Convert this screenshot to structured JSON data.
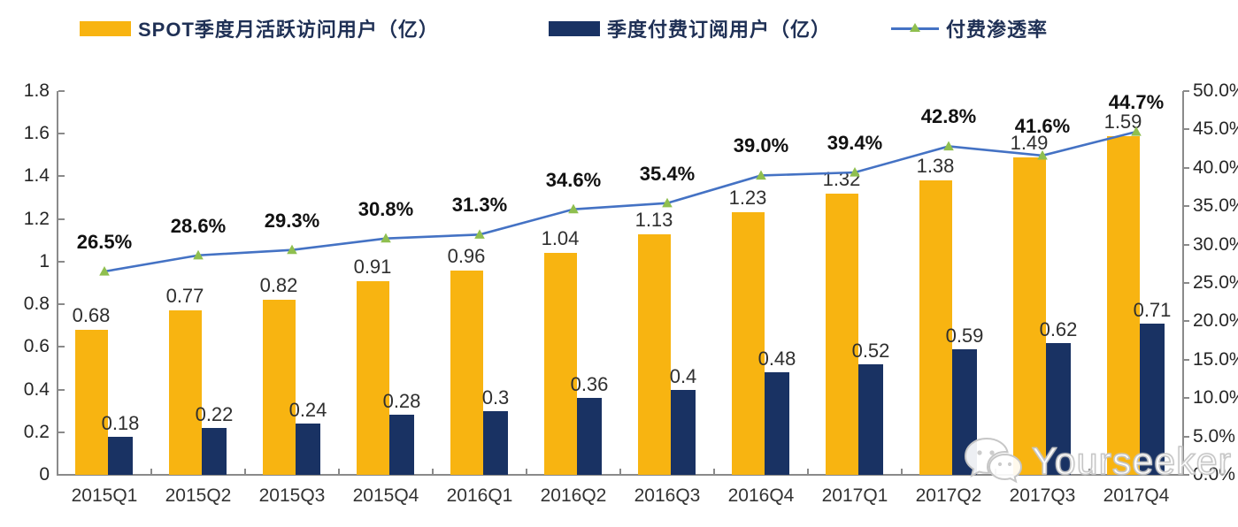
{
  "legend": [
    {
      "label": "SPOT季度月活跃访问用户（亿）",
      "type": "bar",
      "color": "#F8B411"
    },
    {
      "label": "季度付费订阅用户（亿）",
      "type": "bar",
      "color": "#193263"
    },
    {
      "label": "付费渗透率",
      "type": "line",
      "color": "#4472C4",
      "marker_color": "#8FBF4F"
    }
  ],
  "watermark": {
    "text": "Yourseeker",
    "icon": "wechat-icon"
  },
  "chart_data": {
    "type": "bar",
    "subtype": "grouped bars + line (dual axis)",
    "categories": [
      "2015Q1",
      "2015Q2",
      "2015Q3",
      "2015Q4",
      "2016Q1",
      "2016Q2",
      "2016Q3",
      "2016Q4",
      "2017Q1",
      "2017Q2",
      "2017Q3",
      "2017Q4"
    ],
    "series": [
      {
        "name": "SPOT季度月活跃访问用户（亿）",
        "type": "bar",
        "axis": "left",
        "color": "#F8B411",
        "values": [
          0.68,
          0.77,
          0.82,
          0.91,
          0.96,
          1.04,
          1.13,
          1.23,
          1.32,
          1.38,
          1.49,
          1.59
        ],
        "labels": [
          "0.68",
          "0.77",
          "0.82",
          "0.91",
          "0.96",
          "1.04",
          "1.13",
          "1.23",
          "1.32",
          "1.38",
          "1.49",
          "1.59"
        ]
      },
      {
        "name": "季度付费订阅用户（亿）",
        "type": "bar",
        "axis": "left",
        "color": "#193263",
        "values": [
          0.18,
          0.22,
          0.24,
          0.28,
          0.3,
          0.36,
          0.4,
          0.48,
          0.52,
          0.59,
          0.62,
          0.71
        ],
        "labels": [
          "0.18",
          "0.22",
          "0.24",
          "0.28",
          "0.3",
          "0.36",
          "0.4",
          "0.48",
          "0.52",
          "0.59",
          "0.62",
          "0.71"
        ]
      },
      {
        "name": "付费渗透率",
        "type": "line",
        "axis": "right",
        "color": "#4472C4",
        "marker": "triangle",
        "marker_color": "#8FBF4F",
        "values": [
          26.5,
          28.6,
          29.3,
          30.8,
          31.3,
          34.6,
          35.4,
          39.0,
          39.4,
          42.8,
          41.6,
          44.7
        ],
        "labels": [
          "26.5%",
          "28.6%",
          "29.3%",
          "30.8%",
          "31.3%",
          "34.6%",
          "35.4%",
          "39.0%",
          "39.4%",
          "42.8%",
          "41.6%",
          "44.7%"
        ]
      }
    ],
    "left_axis": {
      "min": 0,
      "max": 1.8,
      "step": 0.2,
      "tick_labels": [
        "0",
        "0.2",
        "0.4",
        "0.6",
        "0.8",
        "1",
        "1.2",
        "1.4",
        "1.6",
        "1.8"
      ]
    },
    "right_axis": {
      "min": 0,
      "max": 50,
      "step": 5,
      "tick_labels": [
        "0.0%",
        "5.0%",
        "10.0%",
        "15.0%",
        "20.0%",
        "25.0%",
        "30.0%",
        "35.0%",
        "40.0%",
        "45.0%",
        "50.0%"
      ]
    },
    "grid": false,
    "legend_position": "top",
    "title": ""
  }
}
